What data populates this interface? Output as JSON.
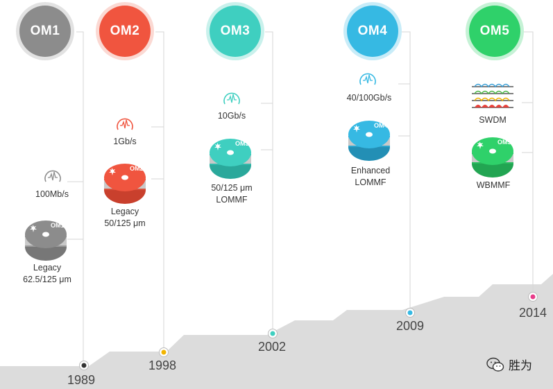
{
  "colors": {
    "om1": "#8c8c8c",
    "om2": "#f0553f",
    "om3": "#3fcfc0",
    "om4": "#36b9e3",
    "om5": "#2fd16a",
    "ground": "#dcdcdc",
    "line": "#d6d6d6"
  },
  "eras": [
    {
      "badge": "OM1",
      "bandwidth": "100Mb/s",
      "fiber_lines": [
        "Legacy",
        "62.5/125 μm"
      ],
      "spool_label": "OM1",
      "year": "1989",
      "marker_color": "#333333"
    },
    {
      "badge": "OM2",
      "bandwidth": "1Gb/s",
      "fiber_lines": [
        "Legacy",
        "50/125 μm"
      ],
      "spool_label": "OM2",
      "year": "1998",
      "marker_color": "#f2b400"
    },
    {
      "badge": "OM3",
      "bandwidth": "10Gb/s",
      "fiber_lines": [
        "50/125 μm",
        "LOMMF"
      ],
      "spool_label": "OM3",
      "year": "2002",
      "marker_color": "#3fcfc0"
    },
    {
      "badge": "OM4",
      "bandwidth": "40/100Gb/s",
      "fiber_lines": [
        "Enhanced",
        "LOMMF"
      ],
      "spool_label": "OM4",
      "year": "2009",
      "marker_color": "#36b9e3"
    },
    {
      "badge": "OM5",
      "bandwidth": "SWDM",
      "fiber_lines": [
        "WBMMF"
      ],
      "spool_label": "OM5",
      "year": "2014",
      "marker_color": "#e83d8a"
    }
  ],
  "watermark": {
    "text": "胜为",
    "icon": "wechat-icon"
  }
}
